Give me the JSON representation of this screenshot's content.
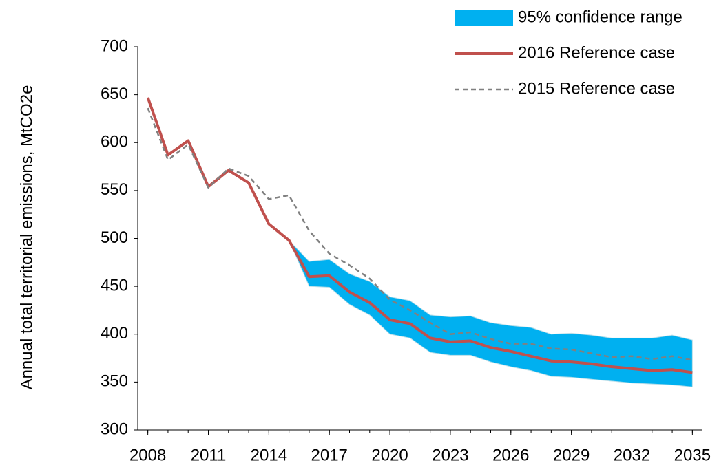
{
  "chart_data": {
    "type": "line",
    "y_label": "Annual total territorial emissions,  MtCO2e",
    "x": [
      2008,
      2009,
      2010,
      2011,
      2012,
      2013,
      2014,
      2015,
      2016,
      2017,
      2018,
      2019,
      2020,
      2021,
      2022,
      2023,
      2024,
      2025,
      2026,
      2027,
      2028,
      2029,
      2030,
      2031,
      2032,
      2033,
      2034,
      2035
    ],
    "xlim": [
      2007.5,
      2035.5
    ],
    "xticks": [
      2008,
      2011,
      2014,
      2017,
      2020,
      2023,
      2026,
      2029,
      2032,
      2035
    ],
    "ylim": [
      300,
      700
    ],
    "yticks": [
      300,
      350,
      400,
      450,
      500,
      550,
      600,
      650,
      700
    ],
    "grid": false,
    "legend": "top-right",
    "series": [
      {
        "name": "95% confidence range",
        "kind": "band",
        "color": "#00b0f0",
        "upper": [
          null,
          null,
          null,
          null,
          null,
          null,
          null,
          498,
          476,
          478,
          463,
          455,
          439,
          435,
          420,
          418,
          419,
          412,
          409,
          407,
          400,
          401,
          399,
          396,
          396,
          396,
          399,
          394
        ],
        "lower": [
          null,
          null,
          null,
          null,
          null,
          null,
          null,
          498,
          450,
          449,
          431,
          420,
          400,
          396,
          381,
          378,
          378,
          371,
          366,
          362,
          356,
          355,
          353,
          351,
          349,
          348,
          347,
          345
        ]
      },
      {
        "name": "2016 Reference case",
        "kind": "solid",
        "color": "#c0504d",
        "values": [
          647,
          587,
          602,
          554,
          571,
          558,
          515,
          498,
          460,
          461,
          444,
          433,
          415,
          411,
          396,
          392,
          393,
          386,
          382,
          377,
          372,
          371,
          369,
          366,
          364,
          362,
          363,
          360
        ]
      },
      {
        "name": "2015 Reference case",
        "kind": "dashed",
        "color": "#808080",
        "values": [
          636,
          582,
          598,
          553,
          573,
          565,
          541,
          545,
          508,
          484,
          472,
          458,
          436,
          425,
          412,
          400,
          402,
          395,
          390,
          390,
          385,
          384,
          380,
          376,
          377,
          374,
          377,
          373
        ]
      }
    ]
  }
}
